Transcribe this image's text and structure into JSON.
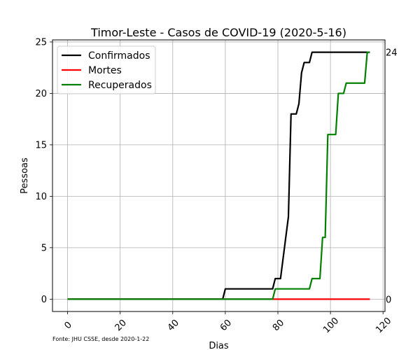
{
  "chart_data": {
    "type": "line",
    "title": "Timor-Leste - Casos de COVID-19 (2020-5-16)",
    "xlabel": "Dias",
    "ylabel": "Pessoas",
    "xlim": [
      -5.75,
      120.75
    ],
    "ylim": [
      -1.2,
      25.2
    ],
    "xticks": [
      0,
      20,
      40,
      60,
      80,
      100,
      120
    ],
    "yticks": [
      0,
      5,
      10,
      15,
      20,
      25
    ],
    "grid": true,
    "legend": "top-left",
    "source_note": "Fonte: JHU CSSE, desde 2020-1-22",
    "end_labels": [
      "24",
      "0"
    ],
    "series": [
      {
        "name": "Confirmados",
        "color": "#000000",
        "points": [
          [
            0,
            0
          ],
          [
            59,
            0
          ],
          [
            60,
            1
          ],
          [
            78,
            1
          ],
          [
            79,
            2
          ],
          [
            81,
            2
          ],
          [
            84,
            8
          ],
          [
            85,
            18
          ],
          [
            87,
            18
          ],
          [
            88,
            19
          ],
          [
            89,
            22
          ],
          [
            90,
            23
          ],
          [
            92,
            23
          ],
          [
            93,
            24
          ],
          [
            115,
            24
          ]
        ]
      },
      {
        "name": "Mortes",
        "color": "#ff0000",
        "points": [
          [
            0,
            0
          ],
          [
            115,
            0
          ]
        ]
      },
      {
        "name": "Recuperados",
        "color": "#008000",
        "points": [
          [
            0,
            0
          ],
          [
            78,
            0
          ],
          [
            79,
            1
          ],
          [
            92,
            1
          ],
          [
            93,
            2
          ],
          [
            96,
            2
          ],
          [
            97,
            6
          ],
          [
            98,
            6
          ],
          [
            99,
            16
          ],
          [
            102,
            16
          ],
          [
            103,
            20
          ],
          [
            105,
            20
          ],
          [
            106,
            21
          ],
          [
            113,
            21
          ],
          [
            114,
            24
          ],
          [
            115,
            24
          ]
        ]
      }
    ]
  }
}
